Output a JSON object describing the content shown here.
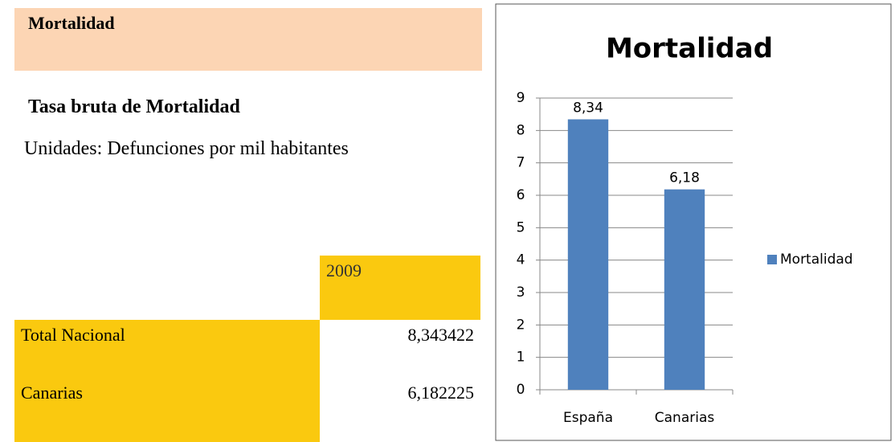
{
  "header": {
    "title": "Mortalidad",
    "subtitle": "Tasa bruta de Mortalidad",
    "units": "Unidades: Defunciones por mil habitantes"
  },
  "table": {
    "columns": [
      "2009"
    ],
    "rows": [
      [
        "Total Nacional",
        "8,343422"
      ],
      [
        "Canarias",
        "6,182225"
      ]
    ]
  },
  "chart_data": {
    "type": "bar",
    "title": "Mortalidad",
    "categories": [
      "España",
      "Canarias"
    ],
    "series": [
      {
        "name": "Mortalidad",
        "color": "#4f81bd",
        "values": [
          8.343422,
          6.182225
        ],
        "value_labels": [
          "8,34",
          "6,18"
        ]
      }
    ],
    "ylim": [
      0,
      9
    ],
    "yticks": [
      0,
      1,
      2,
      3,
      4,
      5,
      6,
      7,
      8,
      9
    ],
    "grid": true,
    "legend": "right"
  }
}
